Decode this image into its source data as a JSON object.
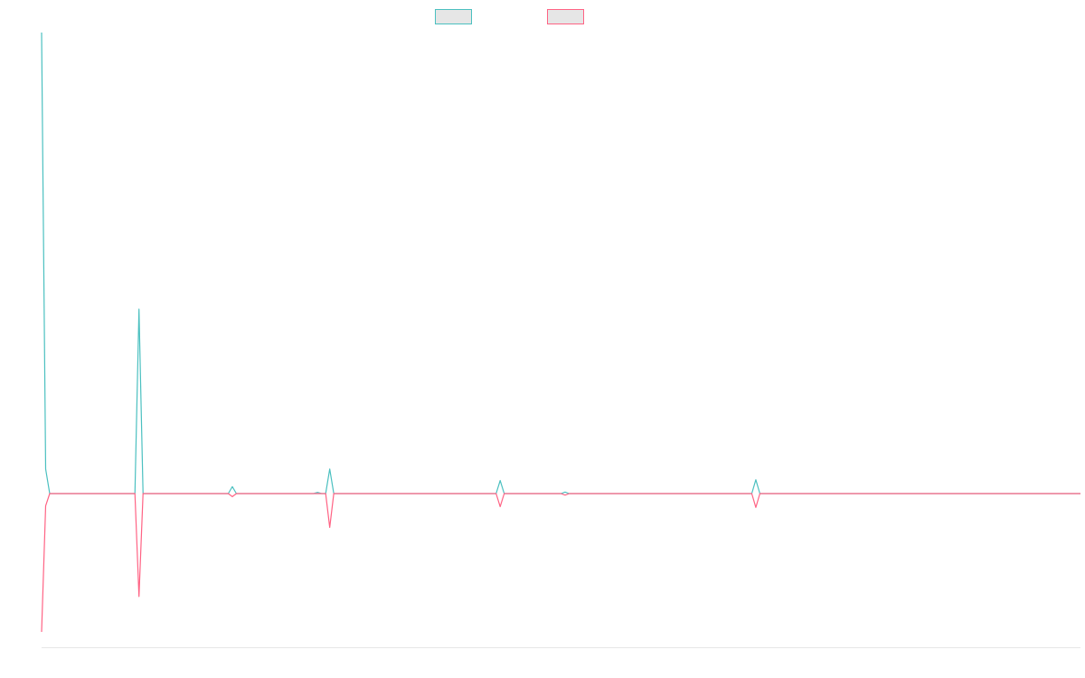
{
  "chart_data": {
    "type": "line",
    "title": "",
    "xlabel": "",
    "ylabel": "",
    "ylim": [
      -1,
      3
    ],
    "legend": "top-center",
    "grid": false,
    "x": [
      0,
      1,
      2,
      22,
      23,
      24,
      25,
      26,
      46,
      47,
      48,
      67,
      68,
      69,
      70,
      71,
      72,
      73,
      112,
      113,
      114,
      128,
      129,
      130,
      175,
      176,
      177,
      256
    ],
    "series": [
      {
        "color": "#4bc0c0",
        "values": [
          3.0,
          0.16,
          0,
          0,
          0,
          1.2,
          0,
          0,
          0,
          0.045,
          0,
          0,
          0.008,
          0,
          0,
          0.16,
          0,
          0,
          0,
          0.085,
          0,
          0,
          0.01,
          0,
          0,
          0.09,
          0,
          0
        ]
      },
      {
        "color": "#ff6384",
        "values": [
          -0.9,
          -0.08,
          0,
          0,
          0,
          -0.67,
          0,
          0,
          0,
          -0.02,
          0,
          0,
          0,
          0,
          0,
          -0.22,
          0,
          0,
          0,
          -0.085,
          0,
          0,
          -0.01,
          0,
          0,
          -0.09,
          0,
          0
        ]
      }
    ]
  }
}
